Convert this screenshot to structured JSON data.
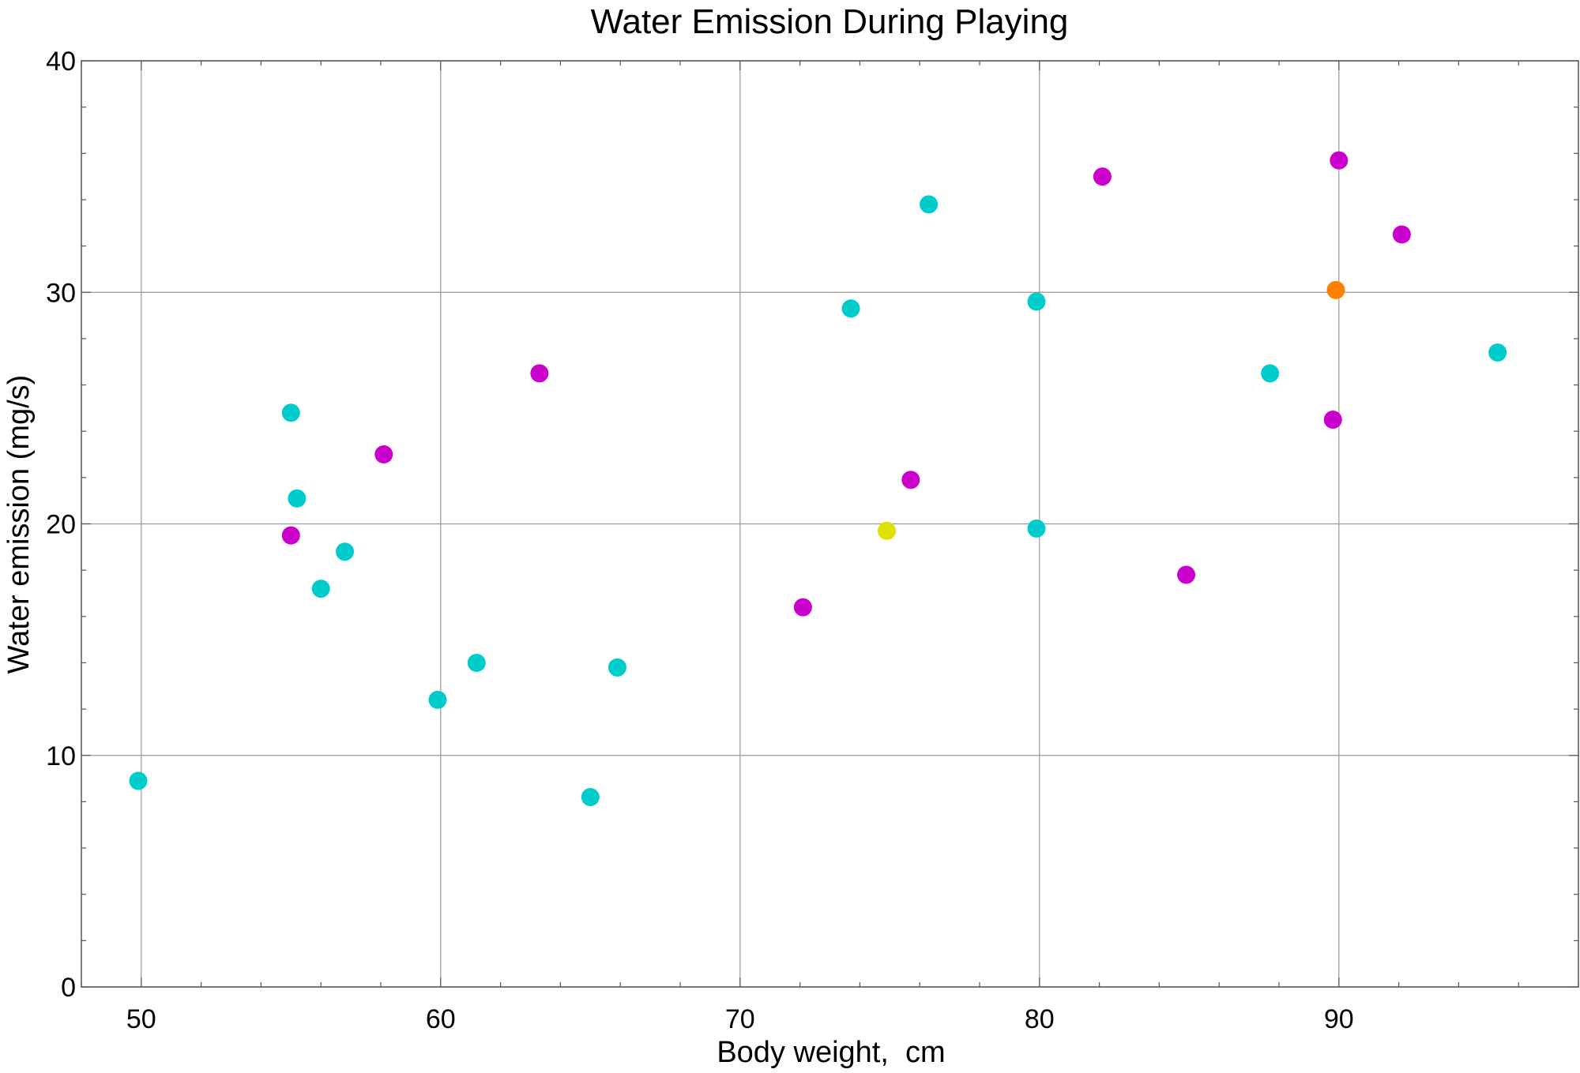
{
  "chart_data": {
    "type": "scatter",
    "title": "Water Emission During Playing",
    "xlabel": "Body weight,  cm",
    "ylabel": "Water emission (mg/s)",
    "xlim": [
      48,
      98
    ],
    "ylim": [
      0,
      40
    ],
    "x_ticks": [
      50,
      60,
      70,
      80,
      90
    ],
    "y_ticks": [
      0,
      10,
      20,
      30,
      40
    ],
    "x_minor_step": 2,
    "y_minor_step": 2,
    "grid": true,
    "colors": {
      "cyan": "#00CCCC",
      "magenta": "#CC00CC",
      "yellow": "#E0E000",
      "orange": "#FF8000",
      "grid": "#999999",
      "frame": "#555555"
    },
    "points": [
      {
        "x": 49.9,
        "y": 8.9,
        "color": "cyan"
      },
      {
        "x": 55.0,
        "y": 24.8,
        "color": "cyan"
      },
      {
        "x": 55.2,
        "y": 21.1,
        "color": "cyan"
      },
      {
        "x": 56.0,
        "y": 17.2,
        "color": "cyan"
      },
      {
        "x": 56.8,
        "y": 18.8,
        "color": "cyan"
      },
      {
        "x": 59.9,
        "y": 12.4,
        "color": "cyan"
      },
      {
        "x": 61.2,
        "y": 14.0,
        "color": "cyan"
      },
      {
        "x": 65.0,
        "y": 8.2,
        "color": "cyan"
      },
      {
        "x": 65.9,
        "y": 13.8,
        "color": "cyan"
      },
      {
        "x": 73.7,
        "y": 29.3,
        "color": "cyan"
      },
      {
        "x": 76.3,
        "y": 33.8,
        "color": "cyan"
      },
      {
        "x": 79.9,
        "y": 29.6,
        "color": "cyan"
      },
      {
        "x": 79.9,
        "y": 19.8,
        "color": "cyan"
      },
      {
        "x": 87.7,
        "y": 26.5,
        "color": "cyan"
      },
      {
        "x": 95.3,
        "y": 27.4,
        "color": "cyan"
      },
      {
        "x": 55.0,
        "y": 19.5,
        "color": "magenta"
      },
      {
        "x": 58.1,
        "y": 23.0,
        "color": "magenta"
      },
      {
        "x": 63.3,
        "y": 26.5,
        "color": "magenta"
      },
      {
        "x": 72.1,
        "y": 16.4,
        "color": "magenta"
      },
      {
        "x": 75.7,
        "y": 21.9,
        "color": "magenta"
      },
      {
        "x": 82.1,
        "y": 35.0,
        "color": "magenta"
      },
      {
        "x": 84.9,
        "y": 17.8,
        "color": "magenta"
      },
      {
        "x": 89.8,
        "y": 24.5,
        "color": "magenta"
      },
      {
        "x": 90.0,
        "y": 35.7,
        "color": "magenta"
      },
      {
        "x": 92.1,
        "y": 32.5,
        "color": "magenta"
      },
      {
        "x": 74.9,
        "y": 19.7,
        "color": "yellow"
      },
      {
        "x": 89.9,
        "y": 30.1,
        "color": "orange"
      }
    ]
  }
}
